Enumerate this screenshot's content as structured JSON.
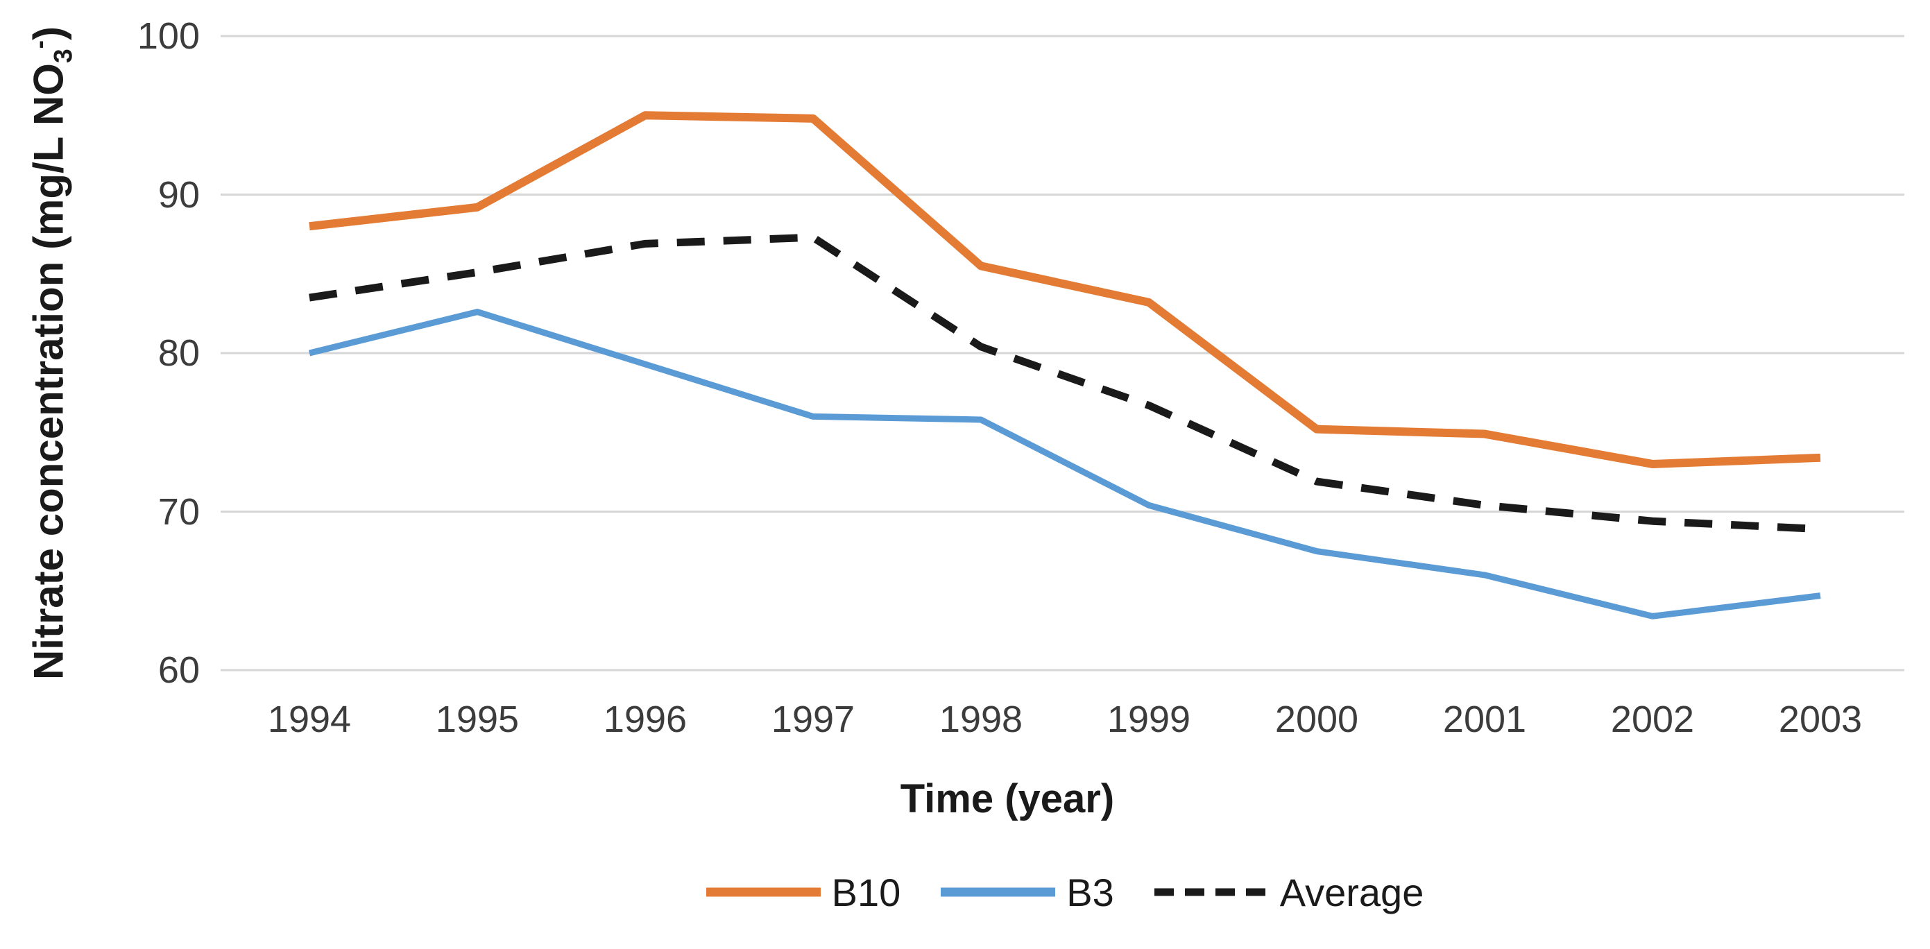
{
  "chart_data": {
    "type": "line",
    "xlabel": "Time (year)",
    "ylabel": "Nitrate concentration (mg/L NO3-)",
    "ylabel_parts": {
      "prefix": "Nitrate concentration (mg/L NO",
      "sub": "3",
      "sup": "-",
      "suffix": ")"
    },
    "categories": [
      "1994",
      "1995",
      "1996",
      "1997",
      "1998",
      "1999",
      "2000",
      "2001",
      "2002",
      "2003"
    ],
    "y_ticks": [
      100,
      90,
      80,
      70,
      60
    ],
    "ylim": [
      60,
      100
    ],
    "grid": "horizontal",
    "legend_position": "bottom",
    "series": [
      {
        "name": "B10",
        "style": "solid",
        "color": "#E47B35",
        "values": [
          88.0,
          89.2,
          95.0,
          94.8,
          85.5,
          83.2,
          75.2,
          74.9,
          73.0,
          73.4
        ]
      },
      {
        "name": "B3",
        "style": "solid",
        "color": "#5B9BD5",
        "values": [
          80.0,
          82.6,
          79.3,
          76.0,
          75.8,
          70.4,
          67.5,
          66.0,
          63.4,
          64.7
        ]
      },
      {
        "name": "Average",
        "style": "dashed",
        "color": "#1A1A1A",
        "values": [
          83.5,
          85.1,
          86.9,
          87.3,
          80.4,
          76.7,
          71.9,
          70.4,
          69.4,
          68.9
        ]
      }
    ]
  },
  "colors": {
    "background": "#FFFFFF",
    "gridline": "#D6D6D6",
    "tick_text": "#3C3C3C",
    "title_text": "#1A1A1A"
  }
}
